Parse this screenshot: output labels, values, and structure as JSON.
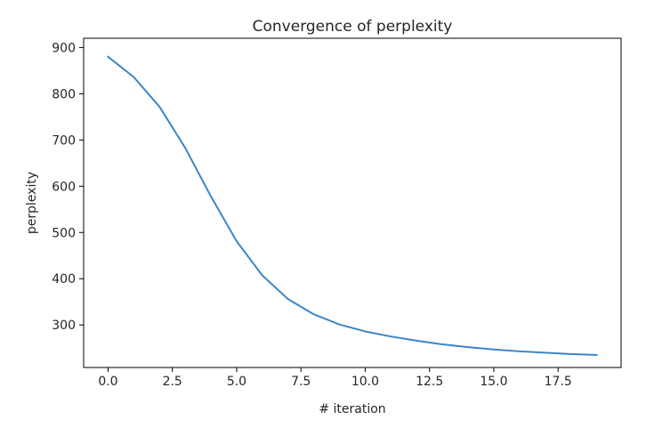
{
  "chart_data": {
    "type": "line",
    "title": "Convergence of perplexity",
    "xlabel": "# iteration",
    "ylabel": "perplexity",
    "xlim": [
      -0.95,
      19.95
    ],
    "ylim": [
      208,
      920
    ],
    "grid": false,
    "legend": null,
    "line_color": "#3b86c6",
    "xticks": [
      0.0,
      2.5,
      5.0,
      7.5,
      10.0,
      12.5,
      15.0,
      17.5
    ],
    "xtick_labels": [
      "0.0",
      "2.5",
      "5.0",
      "7.5",
      "10.0",
      "12.5",
      "15.0",
      "17.5"
    ],
    "yticks": [
      300,
      400,
      500,
      600,
      700,
      800,
      900
    ],
    "ytick_labels": [
      "300",
      "400",
      "500",
      "600",
      "700",
      "800",
      "900"
    ],
    "series": [
      {
        "x": [
          0,
          1,
          2,
          3,
          4,
          5,
          6,
          7,
          8,
          9,
          10,
          11,
          12,
          13,
          14,
          15,
          16,
          17,
          18,
          19
        ],
        "values": [
          880,
          836,
          772,
          683,
          578,
          481,
          407,
          356,
          323,
          301,
          286,
          275,
          266,
          258,
          252,
          247,
          243,
          240,
          237,
          235
        ]
      }
    ]
  }
}
